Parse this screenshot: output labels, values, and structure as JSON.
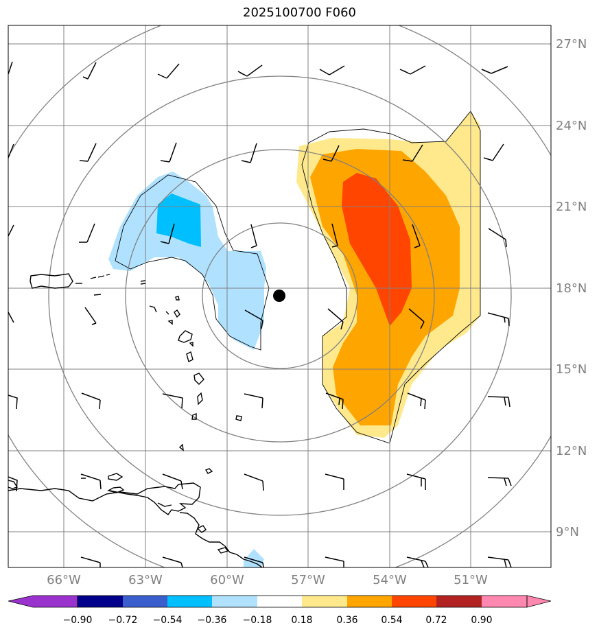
{
  "title": "2025100700 F060",
  "lat_labels": [
    "27°N",
    "24°N",
    "21°N",
    "18°N",
    "15°N",
    "12°N",
    "9°N"
  ],
  "lon_labels": [
    "66°W",
    "63°W",
    "60°W",
    "57°W",
    "54°W",
    "51°W"
  ],
  "colorbar": {
    "ticks": [
      "−0.90",
      "−0.72",
      "−0.54",
      "−0.36",
      "−0.18",
      "0.18",
      "0.36",
      "0.54",
      "0.72",
      "0.90"
    ],
    "colors": {
      "under": "#9a32cd",
      "c1": "#00008b",
      "c2": "#3a5fcd",
      "c3": "#00bfff",
      "c4": "#b0e2ff",
      "c5": "#ffffff",
      "c6": "#ffe98c",
      "c7": "#ffa500",
      "c8": "#ff4500",
      "c9": "#b22222",
      "over": "#ff88b0"
    }
  },
  "center_marker": "storm-center"
}
